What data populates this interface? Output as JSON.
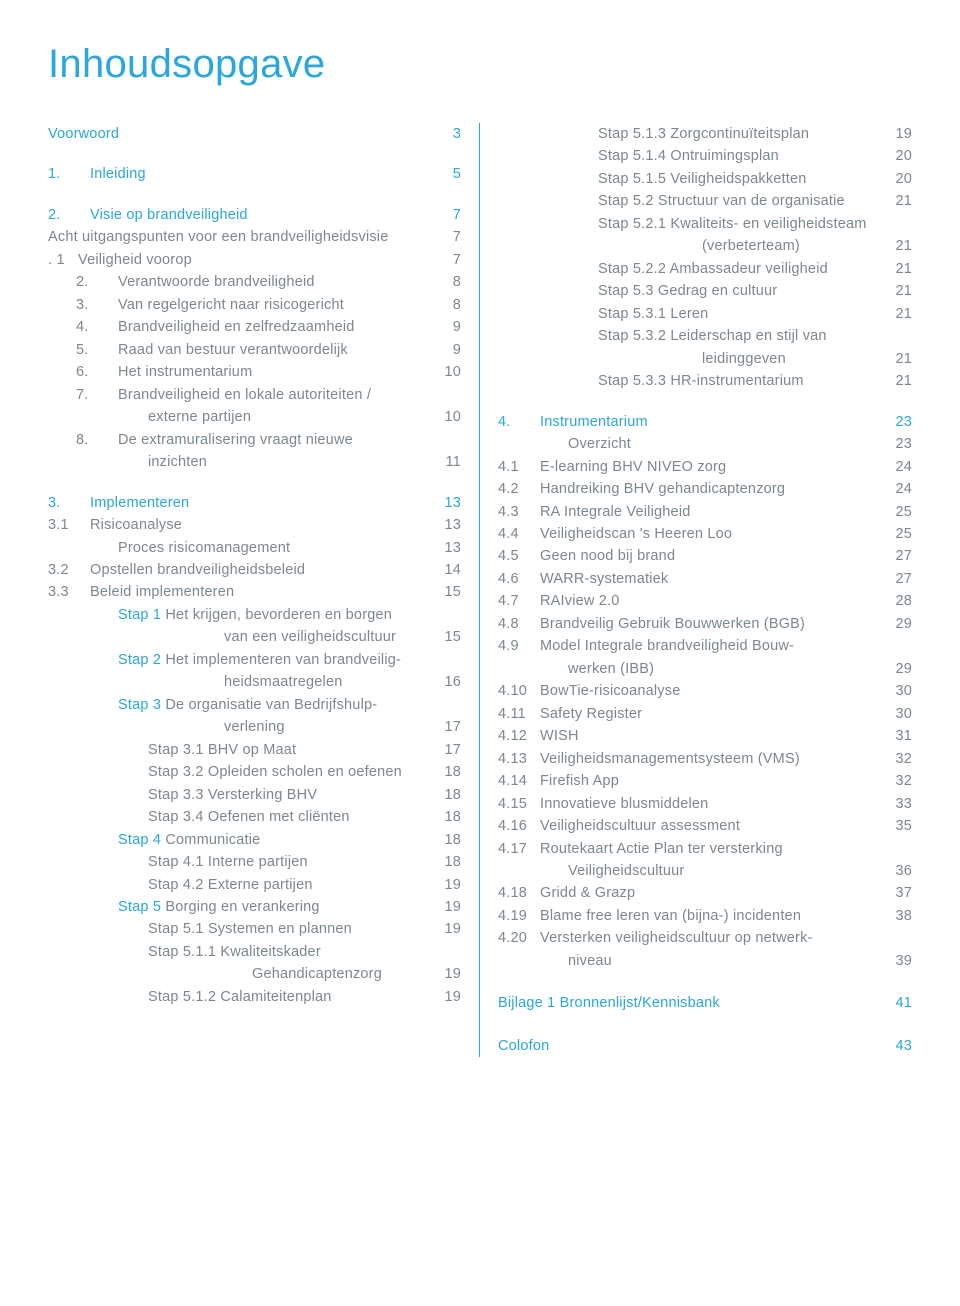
{
  "title": "Inhoudsopgave",
  "colors": {
    "accent": "#2aa7dc",
    "body": "#7c878e"
  },
  "left": [
    {
      "t": "section",
      "num": "",
      "label": "Voorwoord",
      "pg": "3",
      "color": "blue"
    },
    {
      "t": "gap"
    },
    {
      "t": "section",
      "num": "1.",
      "label": "Inleiding",
      "pg": "5",
      "color": "blue"
    },
    {
      "t": "gap"
    },
    {
      "t": "section",
      "num": "2.",
      "label": "Visie op brandveiligheid",
      "pg": "7",
      "color": "blue"
    },
    {
      "t": "line",
      "num": "",
      "label": "Acht uitgangspunten voor een brandveiligheidsvisie",
      "pg": "7"
    },
    {
      "t": "line",
      "num": ".   1",
      "label": "Veiligheid voorop",
      "pg": "7",
      "numw": "narrow"
    },
    {
      "t": "line",
      "num": "2.",
      "label": "Verantwoorde brandveiligheid",
      "pg": "8",
      "indent": 1,
      "numw": "narrow"
    },
    {
      "t": "line",
      "num": "3.",
      "label": "Van regelgericht naar risicogericht",
      "pg": "8",
      "indent": 1,
      "numw": "narrow"
    },
    {
      "t": "line",
      "num": "4.",
      "label": "Brandveiligheid en zelfredzaamheid",
      "pg": "9",
      "indent": 1,
      "numw": "narrow"
    },
    {
      "t": "line",
      "num": "5.",
      "label": "Raad van bestuur verantwoordelijk",
      "pg": "9",
      "indent": 1,
      "numw": "narrow"
    },
    {
      "t": "line",
      "num": "6.",
      "label": "Het instrumentarium",
      "pg": "10",
      "indent": 1,
      "numw": "narrow"
    },
    {
      "t": "line",
      "num": "7.",
      "label": "Brandveiligheid en lokale autoriteiten /",
      "pg": "",
      "indent": 1,
      "numw": "narrow"
    },
    {
      "t": "line",
      "num": "",
      "label": "externe partijen",
      "pg": "10",
      "indent": 2
    },
    {
      "t": "line",
      "num": "8.",
      "label": "De extramuralisering vraagt nieuwe",
      "pg": "",
      "indent": 1,
      "numw": "narrow"
    },
    {
      "t": "line",
      "num": "",
      "label": "inzichten",
      "pg": "11",
      "indent": 2
    },
    {
      "t": "gap"
    },
    {
      "t": "section",
      "num": "3.",
      "label": "Implementeren",
      "pg": "13",
      "color": "blue"
    },
    {
      "t": "line",
      "num": "3.1",
      "label": "Risicoanalyse",
      "pg": "13"
    },
    {
      "t": "line",
      "num": "",
      "label": "Proces risicomanagement",
      "pg": "13",
      "indent": 1
    },
    {
      "t": "line",
      "num": "3.2",
      "label": "Opstellen brandveiligheidsbeleid",
      "pg": "14"
    },
    {
      "t": "line",
      "num": "3.3",
      "label": "Beleid implementeren",
      "pg": "15"
    },
    {
      "t": "line",
      "num": "",
      "label": "Stap 1 Het krijgen, bevorderen en borgen",
      "pg": "",
      "indent": 1,
      "partcolor": "blue",
      "partlen": 6
    },
    {
      "t": "line",
      "num": "",
      "label": "van een veiligheidscultuur",
      "pg": "15",
      "indent": 3
    },
    {
      "t": "line",
      "num": "",
      "label": "Stap 2 Het implementeren van brandveilig-",
      "pg": "",
      "indent": 1,
      "partcolor": "blue",
      "partlen": 6
    },
    {
      "t": "line",
      "num": "",
      "label": "heidsmaatregelen",
      "pg": "16",
      "indent": 3
    },
    {
      "t": "line",
      "num": "",
      "label": "Stap 3 De organisatie van Bedrijfshulp-",
      "pg": "",
      "indent": 1,
      "partcolor": "blue",
      "partlen": 6
    },
    {
      "t": "line",
      "num": "",
      "label": "verlening",
      "pg": "17",
      "indent": 3
    },
    {
      "t": "line",
      "num": "",
      "label": "Stap 3.1 BHV op Maat",
      "pg": "17",
      "indent": 2
    },
    {
      "t": "line",
      "num": "",
      "label": "Stap 3.2 Opleiden scholen en oefenen",
      "pg": "18",
      "indent": 2
    },
    {
      "t": "line",
      "num": "",
      "label": "Stap 3.3 Versterking BHV",
      "pg": "18",
      "indent": 2
    },
    {
      "t": "line",
      "num": "",
      "label": "Stap 3.4 Oefenen met cliënten",
      "pg": "18",
      "indent": 2
    },
    {
      "t": "line",
      "num": "",
      "label": "Stap 4 Communicatie",
      "pg": "18",
      "indent": 1,
      "partcolor": "blue",
      "partlen": 6
    },
    {
      "t": "line",
      "num": "",
      "label": "Stap 4.1 Interne partijen",
      "pg": "18",
      "indent": 2
    },
    {
      "t": "line",
      "num": "",
      "label": "Stap 4.2 Externe partijen",
      "pg": "19",
      "indent": 2
    },
    {
      "t": "line",
      "num": "",
      "label": "Stap 5 Borging en verankering",
      "pg": "19",
      "indent": 1,
      "partcolor": "blue",
      "partlen": 6
    },
    {
      "t": "line",
      "num": "",
      "label": "Stap 5.1 Systemen en plannen",
      "pg": "19",
      "indent": 2
    },
    {
      "t": "line",
      "num": "",
      "label": "Stap 5.1.1 Kwaliteitskader",
      "pg": "",
      "indent": 2
    },
    {
      "t": "line",
      "num": "",
      "label": "Gehandicaptenzorg",
      "pg": "19",
      "indent": 3,
      "extraPad": 60
    },
    {
      "t": "line",
      "num": "",
      "label": "Stap 5.1.2 Calamiteitenplan",
      "pg": "19",
      "indent": 2
    }
  ],
  "right": [
    {
      "t": "line",
      "num": "",
      "label": "Stap 5.1.3 Zorgcontinuïteitsplan",
      "pg": "19",
      "indent": 2
    },
    {
      "t": "line",
      "num": "",
      "label": "Stap 5.1.4 Ontruimingsplan",
      "pg": "20",
      "indent": 2
    },
    {
      "t": "line",
      "num": "",
      "label": "Stap 5.1.5 Veiligheidspakketten",
      "pg": "20",
      "indent": 2
    },
    {
      "t": "line",
      "num": "",
      "label": "Stap 5.2 Structuur van de organisatie",
      "pg": "21",
      "indent": 2
    },
    {
      "t": "line",
      "num": "",
      "label": "Stap 5.2.1 Kwaliteits- en veiligheidsteam",
      "pg": "",
      "indent": 2
    },
    {
      "t": "line",
      "num": "",
      "label": "(verbeterteam)",
      "pg": "21",
      "indent": 3,
      "extraPad": 60
    },
    {
      "t": "line",
      "num": "",
      "label": "Stap 5.2.2 Ambassadeur veiligheid",
      "pg": "21",
      "indent": 2
    },
    {
      "t": "line",
      "num": "",
      "label": "Stap 5.3 Gedrag en cultuur",
      "pg": "21",
      "indent": 2
    },
    {
      "t": "line",
      "num": "",
      "label": "Stap 5.3.1 Leren",
      "pg": "21",
      "indent": 2
    },
    {
      "t": "line",
      "num": "",
      "label": "Stap 5.3.2 Leiderschap en stijl van",
      "pg": "",
      "indent": 2
    },
    {
      "t": "line",
      "num": "",
      "label": "leidinggeven",
      "pg": "21",
      "indent": 3,
      "extraPad": 60
    },
    {
      "t": "line",
      "num": "",
      "label": "Stap 5.3.3 HR-instrumentarium",
      "pg": "21",
      "indent": 2
    },
    {
      "t": "gap"
    },
    {
      "t": "section",
      "num": "4.",
      "label": "Instrumentarium",
      "pg": "23",
      "color": "blue"
    },
    {
      "t": "line",
      "num": "",
      "label": "Overzicht",
      "pg": "23",
      "indent": 1
    },
    {
      "t": "line",
      "num": "4.1",
      "label": "E-learning BHV NIVEO zorg",
      "pg": "24"
    },
    {
      "t": "line",
      "num": "4.2",
      "label": "Handreiking BHV gehandicaptenzorg",
      "pg": "24"
    },
    {
      "t": "line",
      "num": "4.3",
      "label": "RA Integrale Veiligheid",
      "pg": "25"
    },
    {
      "t": "line",
      "num": "4.4",
      "label": "Veiligheidscan 's Heeren Loo",
      "pg": "25"
    },
    {
      "t": "line",
      "num": "4.5",
      "label": "Geen nood bij brand",
      "pg": "27"
    },
    {
      "t": "line",
      "num": "4.6",
      "label": "WARR-systematiek",
      "pg": "27"
    },
    {
      "t": "line",
      "num": "4.7",
      "label": "RAIview 2.0",
      "pg": "28"
    },
    {
      "t": "line",
      "num": "4.8",
      "label": "Brandveilig Gebruik Bouwwerken (BGB)",
      "pg": "29"
    },
    {
      "t": "line",
      "num": "4.9",
      "label": "Model Integrale brandveiligheid Bouw-",
      "pg": ""
    },
    {
      "t": "line",
      "num": "",
      "label": "werken (IBB)",
      "pg": "29",
      "indent": 1
    },
    {
      "t": "line",
      "num": "4.10",
      "label": "BowTie-risicoanalyse",
      "pg": "30"
    },
    {
      "t": "line",
      "num": "4.11",
      "label": "Safety Register",
      "pg": "30"
    },
    {
      "t": "line",
      "num": "4.12",
      "label": "WISH",
      "pg": "31"
    },
    {
      "t": "line",
      "num": "4.13",
      "label": "Veiligheidsmanagementsysteem (VMS)",
      "pg": "32"
    },
    {
      "t": "line",
      "num": "4.14",
      "label": "Firefish App",
      "pg": "32"
    },
    {
      "t": "line",
      "num": "4.15",
      "label": "Innovatieve blusmiddelen",
      "pg": "33"
    },
    {
      "t": "line",
      "num": "4.16",
      "label": "Veiligheidscultuur assessment",
      "pg": "35"
    },
    {
      "t": "line",
      "num": "4.17",
      "label": "Routekaart Actie Plan ter versterking",
      "pg": ""
    },
    {
      "t": "line",
      "num": "",
      "label": "Veiligheidscultuur",
      "pg": "36",
      "indent": 1
    },
    {
      "t": "line",
      "num": "4.18",
      "label": "Gridd & Grazp",
      "pg": "37"
    },
    {
      "t": "line",
      "num": "4.19",
      "label": "Blame free leren van (bijna-) incidenten",
      "pg": "38"
    },
    {
      "t": "line",
      "num": "4.20",
      "label": "Versterken veiligheidscultuur op netwerk-",
      "pg": ""
    },
    {
      "t": "line",
      "num": "",
      "label": "niveau",
      "pg": "39",
      "indent": 1
    },
    {
      "t": "gaplg"
    },
    {
      "t": "section",
      "num": "",
      "label": "Bijlage 1 Bronnenlijst/Kennisbank",
      "pg": "41",
      "color": "blue"
    },
    {
      "t": "gaplg"
    },
    {
      "t": "section",
      "num": "",
      "label": "Colofon",
      "pg": "43",
      "color": "blue"
    }
  ]
}
